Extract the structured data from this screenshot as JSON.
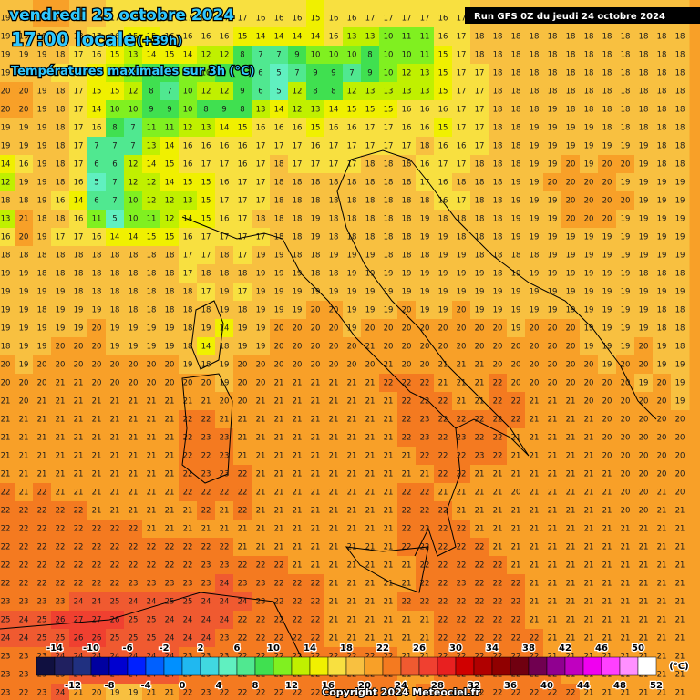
{
  "header": {
    "date": "vendredi 25 octobre 2024",
    "time": "17:00 locale",
    "lead": "(+39h)",
    "subtitle": "Températures maximales sur 3h (°C)",
    "run": "Run GFS 0Z du jeudi 24 octobre 2024"
  },
  "legend": {
    "labels_top": [
      -14,
      -10,
      -6,
      -2,
      2,
      6,
      10,
      14,
      18,
      22,
      26,
      30,
      34,
      38,
      42,
      46,
      50
    ],
    "labels_bottom": [
      -12,
      -8,
      -4,
      0,
      4,
      8,
      12,
      16,
      20,
      24,
      28,
      32,
      36,
      40,
      44,
      48,
      52
    ],
    "unit": "(°C)",
    "colors": [
      "#101040",
      "#202060",
      "#203080",
      "#0000a0",
      "#0000d0",
      "#0020ff",
      "#0060ff",
      "#0090ff",
      "#20b8f0",
      "#40d8e0",
      "#60f0c0",
      "#50e890",
      "#40e050",
      "#80f020",
      "#c0f000",
      "#f0f000",
      "#f8e040",
      "#f8c040",
      "#f8a028",
      "#f47a20",
      "#f05a30",
      "#f04030",
      "#e82020",
      "#d00000",
      "#b00000",
      "#900000",
      "#700010",
      "#700050",
      "#900090",
      "#c000c0",
      "#f000f0",
      "#ff40ff",
      "#ff90ff",
      "#ffffff"
    ]
  },
  "grid": [
    [
      19,
      19,
      20,
      20,
      19,
      18,
      17,
      17,
      17,
      17,
      17,
      17,
      17,
      17,
      16,
      16,
      16,
      15,
      16,
      16,
      17,
      17,
      17,
      17,
      16,
      17,
      18,
      18,
      18,
      18,
      18,
      18,
      18,
      18,
      18,
      18,
      18,
      18
    ],
    [
      19,
      19,
      19,
      19,
      18,
      17,
      16,
      15,
      15,
      16,
      16,
      16,
      16,
      15,
      14,
      14,
      14,
      14,
      16,
      13,
      13,
      10,
      11,
      11,
      16,
      17,
      18,
      18,
      18,
      18,
      18,
      18,
      18,
      18,
      18,
      18,
      18,
      18
    ],
    [
      19,
      19,
      19,
      18,
      17,
      16,
      15,
      13,
      14,
      15,
      14,
      12,
      12,
      8,
      7,
      7,
      9,
      10,
      10,
      10,
      8,
      10,
      10,
      11,
      15,
      17,
      18,
      18,
      18,
      18,
      18,
      18,
      18,
      18,
      18,
      18,
      18,
      18
    ],
    [
      19,
      19,
      18,
      17,
      16,
      15,
      13,
      11,
      9,
      9,
      10,
      10,
      9,
      8,
      6,
      5,
      7,
      9,
      9,
      7,
      9,
      10,
      12,
      13,
      15,
      17,
      17,
      18,
      18,
      18,
      18,
      18,
      18,
      18,
      18,
      18,
      18,
      18
    ],
    [
      20,
      20,
      19,
      18,
      17,
      15,
      15,
      12,
      8,
      7,
      10,
      12,
      12,
      9,
      6,
      5,
      12,
      8,
      8,
      12,
      13,
      13,
      13,
      13,
      15,
      17,
      17,
      18,
      18,
      18,
      18,
      18,
      18,
      18,
      18,
      18,
      18,
      18
    ],
    [
      20,
      20,
      19,
      18,
      17,
      14,
      10,
      10,
      9,
      9,
      10,
      8,
      9,
      8,
      13,
      14,
      12,
      13,
      14,
      15,
      15,
      15,
      16,
      16,
      16,
      17,
      17,
      18,
      18,
      18,
      19,
      18,
      18,
      18,
      18,
      18,
      18,
      18
    ],
    [
      19,
      19,
      19,
      18,
      17,
      16,
      8,
      7,
      11,
      11,
      12,
      13,
      14,
      15,
      16,
      16,
      16,
      15,
      16,
      16,
      17,
      17,
      16,
      16,
      15,
      17,
      17,
      18,
      18,
      19,
      19,
      19,
      19,
      18,
      18,
      18,
      18,
      18
    ],
    [
      19,
      19,
      19,
      18,
      17,
      7,
      7,
      7,
      13,
      14,
      16,
      16,
      16,
      16,
      17,
      17,
      17,
      16,
      17,
      17,
      17,
      17,
      17,
      18,
      16,
      16,
      17,
      18,
      18,
      19,
      19,
      19,
      19,
      19,
      19,
      19,
      18,
      18
    ],
    [
      14,
      16,
      19,
      18,
      17,
      6,
      6,
      12,
      14,
      15,
      16,
      17,
      17,
      16,
      17,
      18,
      17,
      17,
      17,
      17,
      18,
      18,
      18,
      16,
      17,
      17,
      18,
      18,
      18,
      19,
      19,
      20,
      19,
      20,
      20,
      19,
      18,
      18
    ],
    [
      12,
      19,
      19,
      18,
      16,
      5,
      7,
      12,
      12,
      14,
      15,
      15,
      16,
      17,
      17,
      18,
      18,
      18,
      18,
      18,
      18,
      18,
      18,
      17,
      16,
      18,
      18,
      18,
      19,
      19,
      20,
      20,
      20,
      20,
      19,
      19,
      19,
      19
    ],
    [
      18,
      18,
      19,
      16,
      14,
      6,
      7,
      10,
      12,
      12,
      13,
      15,
      17,
      17,
      17,
      18,
      18,
      18,
      18,
      18,
      18,
      18,
      18,
      18,
      16,
      17,
      18,
      18,
      19,
      19,
      19,
      20,
      20,
      20,
      20,
      19,
      19,
      19
    ],
    [
      13,
      21,
      18,
      18,
      16,
      11,
      5,
      10,
      11,
      12,
      14,
      15,
      16,
      17,
      18,
      18,
      18,
      19,
      18,
      18,
      18,
      18,
      18,
      19,
      18,
      18,
      18,
      18,
      19,
      19,
      19,
      20,
      20,
      20,
      19,
      19,
      19,
      19
    ],
    [
      16,
      20,
      19,
      17,
      17,
      16,
      14,
      14,
      15,
      15,
      16,
      17,
      17,
      17,
      17,
      18,
      18,
      19,
      18,
      18,
      18,
      18,
      18,
      19,
      19,
      18,
      18,
      18,
      19,
      19,
      19,
      19,
      19,
      19,
      19,
      19,
      19,
      19
    ],
    [
      18,
      18,
      18,
      18,
      18,
      18,
      18,
      18,
      18,
      18,
      17,
      17,
      18,
      17,
      19,
      19,
      18,
      18,
      19,
      19,
      19,
      18,
      18,
      18,
      19,
      19,
      18,
      18,
      18,
      18,
      19,
      19,
      19,
      19,
      19,
      19,
      19,
      19
    ],
    [
      19,
      19,
      18,
      18,
      18,
      18,
      18,
      18,
      18,
      18,
      17,
      18,
      18,
      18,
      19,
      19,
      19,
      18,
      18,
      19,
      19,
      19,
      19,
      19,
      19,
      19,
      19,
      18,
      19,
      19,
      19,
      19,
      19,
      19,
      19,
      18,
      18,
      18
    ],
    [
      19,
      19,
      19,
      19,
      18,
      18,
      18,
      18,
      18,
      18,
      18,
      17,
      19,
      17,
      19,
      19,
      19,
      19,
      19,
      19,
      19,
      19,
      19,
      19,
      19,
      19,
      19,
      19,
      19,
      19,
      19,
      19,
      19,
      19,
      19,
      19,
      19,
      19
    ],
    [
      19,
      19,
      18,
      19,
      19,
      19,
      18,
      18,
      18,
      18,
      18,
      18,
      19,
      18,
      19,
      19,
      19,
      20,
      20,
      19,
      19,
      19,
      20,
      19,
      19,
      20,
      19,
      19,
      19,
      19,
      19,
      19,
      19,
      19,
      19,
      19,
      18,
      18
    ],
    [
      19,
      19,
      19,
      19,
      19,
      20,
      19,
      19,
      19,
      19,
      18,
      19,
      14,
      19,
      19,
      20,
      20,
      20,
      20,
      19,
      20,
      20,
      20,
      20,
      20,
      20,
      20,
      20,
      19,
      20,
      20,
      20,
      19,
      19,
      19,
      19,
      18,
      18
    ],
    [
      18,
      19,
      19,
      20,
      20,
      20,
      19,
      19,
      19,
      19,
      18,
      14,
      18,
      19,
      19,
      20,
      20,
      20,
      20,
      20,
      21,
      20,
      20,
      20,
      20,
      20,
      20,
      20,
      20,
      20,
      20,
      20,
      19,
      19,
      19,
      20,
      19,
      18
    ],
    [
      20,
      19,
      20,
      20,
      20,
      20,
      20,
      20,
      20,
      20,
      19,
      18,
      19,
      20,
      20,
      20,
      20,
      20,
      20,
      20,
      20,
      21,
      20,
      20,
      21,
      21,
      21,
      20,
      20,
      20,
      20,
      20,
      20,
      19,
      20,
      20,
      19,
      19
    ],
    [
      20,
      20,
      20,
      21,
      21,
      20,
      20,
      20,
      20,
      20,
      20,
      20,
      19,
      20,
      20,
      21,
      21,
      21,
      21,
      21,
      21,
      22,
      22,
      22,
      21,
      21,
      21,
      22,
      20,
      20,
      20,
      20,
      20,
      20,
      20,
      19,
      20,
      19
    ],
    [
      21,
      20,
      21,
      21,
      21,
      21,
      21,
      21,
      21,
      21,
      21,
      21,
      20,
      20,
      21,
      21,
      21,
      21,
      21,
      21,
      21,
      21,
      22,
      22,
      22,
      21,
      21,
      22,
      22,
      21,
      21,
      21,
      20,
      20,
      20,
      20,
      20,
      19
    ],
    [
      21,
      21,
      21,
      21,
      21,
      21,
      21,
      21,
      21,
      21,
      22,
      22,
      21,
      21,
      21,
      21,
      21,
      21,
      21,
      21,
      21,
      21,
      22,
      23,
      22,
      22,
      22,
      22,
      22,
      21,
      21,
      21,
      21,
      20,
      20,
      20,
      20,
      20
    ],
    [
      21,
      21,
      21,
      21,
      21,
      21,
      21,
      21,
      21,
      21,
      22,
      23,
      23,
      21,
      21,
      21,
      21,
      21,
      21,
      21,
      21,
      21,
      22,
      23,
      22,
      23,
      22,
      22,
      21,
      21,
      21,
      21,
      21,
      20,
      20,
      20,
      20,
      20
    ],
    [
      21,
      21,
      21,
      21,
      21,
      21,
      21,
      21,
      21,
      21,
      22,
      22,
      23,
      21,
      21,
      21,
      21,
      21,
      21,
      21,
      21,
      21,
      21,
      22,
      22,
      22,
      23,
      22,
      21,
      21,
      21,
      21,
      21,
      20,
      20,
      20,
      20,
      20
    ],
    [
      21,
      21,
      21,
      21,
      21,
      21,
      21,
      21,
      21,
      21,
      22,
      23,
      23,
      22,
      21,
      21,
      21,
      21,
      21,
      21,
      21,
      21,
      21,
      21,
      22,
      22,
      21,
      21,
      21,
      21,
      21,
      21,
      21,
      21,
      20,
      20,
      20,
      20
    ],
    [
      22,
      21,
      22,
      21,
      21,
      21,
      21,
      21,
      21,
      21,
      22,
      22,
      22,
      22,
      21,
      21,
      21,
      21,
      21,
      21,
      21,
      21,
      22,
      22,
      21,
      21,
      21,
      21,
      20,
      21,
      21,
      21,
      21,
      21,
      20,
      20,
      21,
      20
    ],
    [
      22,
      22,
      22,
      22,
      22,
      21,
      21,
      21,
      21,
      21,
      21,
      22,
      21,
      22,
      21,
      21,
      21,
      21,
      21,
      21,
      21,
      21,
      22,
      22,
      22,
      21,
      21,
      21,
      21,
      21,
      21,
      21,
      21,
      21,
      20,
      20,
      21,
      21
    ],
    [
      22,
      22,
      22,
      22,
      22,
      22,
      22,
      22,
      21,
      21,
      21,
      21,
      21,
      21,
      21,
      21,
      21,
      21,
      21,
      21,
      21,
      21,
      22,
      22,
      22,
      22,
      21,
      21,
      21,
      21,
      21,
      21,
      21,
      21,
      21,
      21,
      21,
      21
    ],
    [
      22,
      22,
      22,
      22,
      22,
      22,
      22,
      22,
      22,
      22,
      22,
      22,
      22,
      21,
      21,
      21,
      21,
      21,
      21,
      21,
      21,
      21,
      22,
      22,
      22,
      22,
      22,
      21,
      21,
      21,
      21,
      21,
      21,
      21,
      21,
      21,
      21,
      21
    ],
    [
      22,
      22,
      22,
      22,
      22,
      22,
      22,
      22,
      22,
      22,
      22,
      23,
      23,
      22,
      22,
      22,
      21,
      21,
      21,
      21,
      21,
      21,
      21,
      22,
      22,
      22,
      22,
      22,
      21,
      21,
      21,
      21,
      21,
      21,
      21,
      21,
      21,
      21
    ],
    [
      22,
      22,
      22,
      22,
      22,
      22,
      22,
      23,
      23,
      23,
      23,
      23,
      24,
      23,
      23,
      22,
      22,
      22,
      21,
      21,
      21,
      21,
      21,
      22,
      22,
      23,
      22,
      22,
      22,
      21,
      21,
      21,
      21,
      21,
      21,
      21,
      21,
      21
    ],
    [
      23,
      23,
      23,
      23,
      24,
      24,
      25,
      24,
      24,
      25,
      25,
      24,
      24,
      24,
      23,
      22,
      22,
      22,
      21,
      21,
      21,
      21,
      22,
      22,
      22,
      22,
      22,
      22,
      22,
      21,
      21,
      21,
      21,
      21,
      21,
      21,
      21,
      21
    ],
    [
      25,
      24,
      25,
      26,
      27,
      27,
      26,
      25,
      25,
      24,
      24,
      24,
      24,
      22,
      22,
      22,
      22,
      22,
      21,
      21,
      21,
      21,
      21,
      21,
      22,
      22,
      22,
      22,
      22,
      21,
      21,
      21,
      21,
      21,
      21,
      21,
      21,
      21
    ],
    [
      24,
      24,
      25,
      25,
      26,
      26,
      25,
      25,
      25,
      24,
      24,
      24,
      23,
      22,
      22,
      22,
      22,
      22,
      21,
      21,
      21,
      21,
      21,
      21,
      22,
      22,
      22,
      22,
      22,
      22,
      21,
      21,
      21,
      21,
      21,
      21,
      21,
      21
    ],
    [
      23,
      23,
      23,
      24,
      24,
      24,
      24,
      24,
      24,
      24,
      23,
      23,
      23,
      22,
      22,
      22,
      22,
      22,
      22,
      22,
      22,
      22,
      21,
      21,
      22,
      22,
      22,
      22,
      22,
      22,
      21,
      21,
      21,
      21,
      21,
      21,
      21,
      21
    ],
    [
      23,
      23,
      23,
      23,
      24,
      24,
      24,
      24,
      24,
      24,
      23,
      23,
      23,
      22,
      22,
      22,
      22,
      22,
      22,
      22,
      22,
      22,
      21,
      21,
      22,
      22,
      22,
      22,
      22,
      22,
      22,
      21,
      21,
      21,
      21,
      21,
      21,
      21
    ],
    [
      23,
      22,
      23,
      24,
      21,
      20,
      19,
      19,
      21,
      21,
      22,
      23,
      22,
      22,
      22,
      22,
      22,
      22,
      22,
      22,
      22,
      22,
      21,
      22,
      22,
      22,
      22,
      22,
      22,
      22,
      22,
      22,
      21,
      21,
      21,
      21,
      21,
      21
    ]
  ],
  "copyright": "Copyright 2024 Meteociel.fr"
}
